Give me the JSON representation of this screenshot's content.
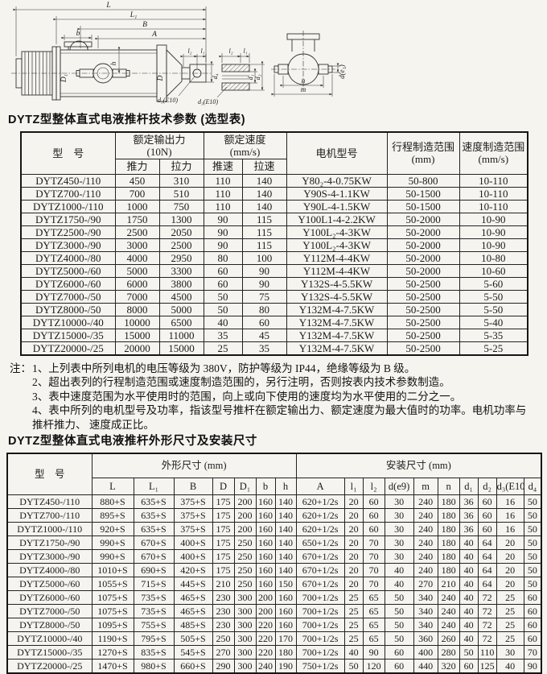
{
  "drawing": {
    "labels": {
      "L": "L",
      "L1": "L₁",
      "B": "B",
      "A": "A",
      "b": "b",
      "h": "h",
      "D": "D",
      "D1": "D₁",
      "l1": "l₁",
      "l2": "l₂",
      "d1": "d₁",
      "d2": "d₂",
      "d3": "d₃(E10)",
      "d4": "d₄",
      "de1": "d(e₁)",
      "n": "n",
      "m": "m"
    }
  },
  "table1": {
    "title": "DYTZ型整体直式电液推杆技术参数 (选型表)",
    "header": {
      "model": "型　号",
      "force_group": "额定输出力",
      "force_unit": "(10N)",
      "speed_group": "额定速度",
      "speed_unit": "(mm/s)",
      "push_force": "推力",
      "pull_force": "拉力",
      "push_speed": "推速",
      "pull_speed": "拉速",
      "motor": "电机型号",
      "stroke_range": "行程制造范围",
      "stroke_unit": "(mm)",
      "speed_range": "速度制造范围",
      "speed_range_unit": "(mm/s)"
    },
    "rows": [
      [
        "DYTZ450-/110",
        "450",
        "310",
        "110",
        "140",
        "Y80₂-4-0.75KW",
        "50-800",
        "10-110"
      ],
      [
        "DYTZ700-/110",
        "700",
        "510",
        "110",
        "140",
        "Y90S-4-1.1KW",
        "50-1500",
        "10-110"
      ],
      [
        "DYTZ1000-/110",
        "1000",
        "750",
        "110",
        "140",
        "Y90L-4-1.5KW",
        "50-1500",
        "10-110"
      ],
      [
        "DYTZ1750-/90",
        "1750",
        "1300",
        "90",
        "115",
        "Y100L1-4-2.2KW",
        "50-2000",
        "10-90"
      ],
      [
        "DYTZ2500-/90",
        "2500",
        "2050",
        "90",
        "115",
        "Y100L₂-4-3KW",
        "50-2000",
        "10-90"
      ],
      [
        "DYTZ3000-/90",
        "3000",
        "2500",
        "90",
        "115",
        "Y100L₂-4-3KW",
        "50-2000",
        "10-90"
      ],
      [
        "DYTZ4000-/80",
        "4000",
        "2950",
        "80",
        "100",
        "Y112M-4-4KW",
        "50-2000",
        "10-80"
      ],
      [
        "DYTZ5000-/60",
        "5000",
        "3300",
        "60",
        "90",
        "Y112M-4-4KW",
        "50-2000",
        "10-60"
      ],
      [
        "DYTZ6000-/60",
        "6000",
        "3800",
        "60",
        "90",
        "Y132S-4-5.5KW",
        "50-2500",
        "5-60"
      ],
      [
        "DYTZ7000-/50",
        "7000",
        "4500",
        "50",
        "75",
        "Y132S-4-5.5KW",
        "50-2500",
        "5-50"
      ],
      [
        "DYTZ8000-/50",
        "8000",
        "5000",
        "50",
        "80",
        "Y132M-4-7.5KW",
        "50-2500",
        "5-50"
      ],
      [
        "DYTZ10000-/40",
        "10000",
        "6500",
        "40",
        "60",
        "Y132M-4-7.5KW",
        "50-2500",
        "5-40"
      ],
      [
        "DYTZ15000-/35",
        "15000",
        "11000",
        "35",
        "45",
        "Y132M-4-7.5KW",
        "50-2500",
        "5-35"
      ],
      [
        "DYTZ20000-/25",
        "20000",
        "15000",
        "25",
        "35",
        "Y132M-4-7.5KW",
        "50-2500",
        "5-25"
      ]
    ]
  },
  "notes": {
    "label": "注：",
    "items": [
      "1、上列表中所列电机的电压等级为 380V，防护等级为 IP44，绝缘等级为 B 级。",
      "2、超出表列的行程制造范围或速度制造范围的，另行注明，否则按表内技术参数制造。",
      "3、表中速度范围为水平使用时的范围，向上或向下使用的速度均为水平使用的二分之一。",
      "4、表中所列的电机型号及功率，指该型号推杆在额定输出力、额定速度为最大值时的功率。电机功率与推杆推力、 速度成正比。"
    ]
  },
  "table2": {
    "title": "DYTZ型整体直式电液推杆外形尺寸及安装尺寸",
    "header": {
      "model": "型　号",
      "outline_group": "外形尺寸  (mm)",
      "install_group": "安装尺寸  (mm)",
      "cols": [
        "L",
        "L₁",
        "B",
        "D",
        "D₁",
        "b",
        "h",
        "A",
        "l₁",
        "l₂",
        "d(e9)",
        "m",
        "n",
        "d₁",
        "d₂",
        "d₃(E10)",
        "d₄"
      ]
    },
    "rows": [
      [
        "DYTZ450-/110",
        "880+S",
        "635+S",
        "375+S",
        "175",
        "200",
        "160",
        "140",
        "620+1/2s",
        "20",
        "60",
        "30",
        "240",
        "180",
        "36",
        "60",
        "16",
        "50"
      ],
      [
        "DYTZ700-/110",
        "895+S",
        "635+S",
        "375+S",
        "175",
        "200",
        "160",
        "140",
        "620+1/2s",
        "20",
        "60",
        "30",
        "240",
        "180",
        "36",
        "60",
        "16",
        "50"
      ],
      [
        "DYTZ1000-/110",
        "920+S",
        "635+S",
        "375+S",
        "175",
        "200",
        "160",
        "140",
        "620+1/2s",
        "20",
        "60",
        "30",
        "240",
        "180",
        "36",
        "60",
        "16",
        "50"
      ],
      [
        "DYTZ1750-/90",
        "990+S",
        "670+S",
        "400+S",
        "175",
        "250",
        "160",
        "140",
        "650+1/2s",
        "20",
        "70",
        "30",
        "240",
        "180",
        "40",
        "64",
        "20",
        "50"
      ],
      [
        "DYTZ3000-/90",
        "990+S",
        "670+S",
        "400+S",
        "175",
        "250",
        "160",
        "140",
        "670+1/2s",
        "20",
        "70",
        "30",
        "240",
        "180",
        "40",
        "64",
        "20",
        "50"
      ],
      [
        "DYTZ4000-/80",
        "1010+S",
        "690+S",
        "420+S",
        "175",
        "250",
        "160",
        "140",
        "670+1/2s",
        "20",
        "70",
        "40",
        "240",
        "180",
        "40",
        "64",
        "20",
        "50"
      ],
      [
        "DYTZ5000-/60",
        "1055+S",
        "715+S",
        "445+S",
        "210",
        "250",
        "160",
        "150",
        "670+1/2s",
        "20",
        "70",
        "40",
        "270",
        "210",
        "40",
        "64",
        "20",
        "50"
      ],
      [
        "DYTZ6000-/60",
        "1075+S",
        "735+S",
        "465+S",
        "230",
        "300",
        "200",
        "160",
        "700+1/2s",
        "25",
        "65",
        "50",
        "340",
        "240",
        "40",
        "72",
        "25",
        "60"
      ],
      [
        "DYTZ7000-/50",
        "1075+S",
        "735+S",
        "465+S",
        "230",
        "300",
        "200",
        "160",
        "700+1/2s",
        "25",
        "65",
        "50",
        "340",
        "240",
        "40",
        "72",
        "25",
        "60"
      ],
      [
        "DYTZ8000-/50",
        "1095+S",
        "755+S",
        "485+S",
        "230",
        "300",
        "220",
        "160",
        "700+1/2s",
        "25",
        "65",
        "50",
        "340",
        "240",
        "40",
        "72",
        "25",
        "60"
      ],
      [
        "DYTZ10000-/40",
        "1190+S",
        "795+S",
        "505+S",
        "250",
        "300",
        "220",
        "170",
        "700+1/2s",
        "25",
        "65",
        "50",
        "360",
        "260",
        "40",
        "72",
        "25",
        "60"
      ],
      [
        "DYTZ15000-/35",
        "1270+S",
        "835+S",
        "545+S",
        "270",
        "300",
        "220",
        "180",
        "700+1/2s",
        "40",
        "90",
        "60",
        "400",
        "280",
        "50",
        "110",
        "30",
        "70"
      ],
      [
        "DYTZ20000-/25",
        "1470+S",
        "980+S",
        "660+S",
        "290",
        "300",
        "240",
        "190",
        "750+1/2s",
        "50",
        "120",
        "60",
        "440",
        "320",
        "60",
        "125",
        "40",
        "90"
      ]
    ]
  }
}
